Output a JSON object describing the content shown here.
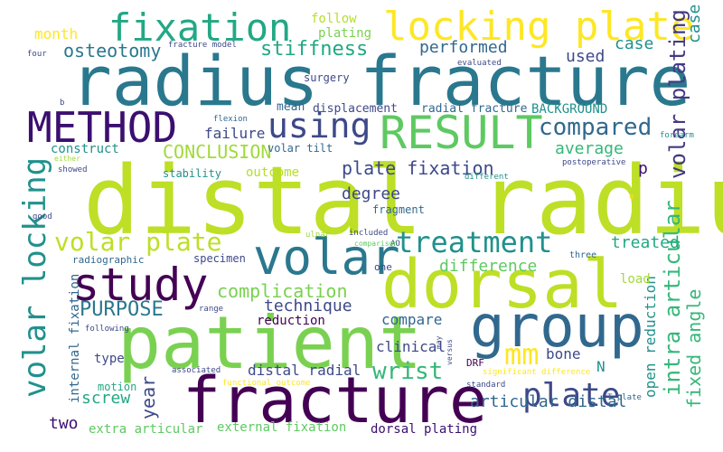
{
  "words": {
    "radius_fracture": {
      "text": "radius fracture",
      "color": "#2a788e"
    },
    "distal_radius": {
      "text": "distal radius",
      "color": "#bddf26"
    },
    "dorsal": {
      "text": "dorsal",
      "color": "#bddf26"
    },
    "patient": {
      "text": "patient",
      "color": "#7ad151"
    },
    "fracture": {
      "text": "fracture",
      "color": "#440154"
    },
    "group": {
      "text": "group",
      "color": "#31688e"
    },
    "volar": {
      "text": "volar",
      "color": "#2a788e"
    },
    "result": {
      "text": "RESULT",
      "color": "#5ec962"
    },
    "method": {
      "text": "METHOD",
      "color": "#3b0f70"
    },
    "locking_plate": {
      "text": "locking plate",
      "color": "#fde725"
    },
    "fixation": {
      "text": "fixation",
      "color": "#22a884"
    },
    "study": {
      "text": "study",
      "color": "#440154"
    },
    "volar_plate": {
      "text": "volar plate",
      "color": "#bddf26"
    },
    "volar_locking": {
      "text": "volar locking",
      "color": "#21918c"
    },
    "treatment": {
      "text": "treatment",
      "color": "#21918c"
    },
    "plate": {
      "text": "plate",
      "color": "#3e4989"
    },
    "using": {
      "text": "using",
      "color": "#3e4989"
    },
    "mm": {
      "text": "mm",
      "color": "#fde725"
    },
    "wrist": {
      "text": "wrist",
      "color": "#35b779"
    },
    "volar_plating": {
      "text": "volar plating",
      "color": "#443983"
    },
    "intra_articular": {
      "text": "intra articular",
      "color": "#35b779"
    },
    "fixed_angle": {
      "text": "fixed angle",
      "color": "#35b779"
    },
    "stiffness": {
      "text": "stiffness",
      "color": "#22a884"
    },
    "osteotomy": {
      "text": "osteotomy",
      "color": "#2a788e"
    },
    "plate_fixation": {
      "text": "plate fixation",
      "color": "#3e4989"
    },
    "compared": {
      "text": "compared",
      "color": "#31688e"
    },
    "complication": {
      "text": "complication",
      "color": "#7ad151"
    },
    "purpose": {
      "text": "PURPOSE",
      "color": "#2a788e"
    },
    "conclusion": {
      "text": "CONCLUSION",
      "color": "#a0da39"
    },
    "performed": {
      "text": "performed",
      "color": "#31688e"
    },
    "used": {
      "text": "used",
      "color": "#3e4989"
    },
    "case": {
      "text": "case",
      "color": "#21918c"
    },
    "month": {
      "text": "month",
      "color": "#fde725"
    },
    "follow": {
      "text": "follow",
      "color": "#b5de2b"
    },
    "plating": {
      "text": "plating",
      "color": "#7ad151"
    },
    "average": {
      "text": "average",
      "color": "#35b779"
    },
    "degree": {
      "text": "degree",
      "color": "#3e4989"
    },
    "difference": {
      "text": "difference",
      "color": "#5ec962"
    },
    "treated": {
      "text": "treated",
      "color": "#22a884"
    },
    "technique": {
      "text": "technique",
      "color": "#3e4989"
    },
    "compare": {
      "text": "compare",
      "color": "#31688e"
    },
    "clinical": {
      "text": "clinical",
      "color": "#3e4989"
    },
    "reduction": {
      "text": "reduction",
      "color": "#440154"
    },
    "open_reduction": {
      "text": "open reduction",
      "color": "#21918c"
    },
    "bone": {
      "text": "bone",
      "color": "#3e4989"
    },
    "type": {
      "text": "type",
      "color": "#3e4989"
    },
    "screw": {
      "text": "screw",
      "color": "#22a884"
    },
    "year": {
      "text": "year",
      "color": "#3e4989"
    },
    "two": {
      "text": "two",
      "color": "#3b0f70"
    },
    "distal_radial": {
      "text": "distal radial",
      "color": "#3e4989"
    },
    "articular_distal": {
      "text": "articular distal",
      "color": "#31688e"
    },
    "extra_articular": {
      "text": "extra articular",
      "color": "#5ec962"
    },
    "external_fixation": {
      "text": "external fixation",
      "color": "#5ec962"
    },
    "dorsal_plating": {
      "text": "dorsal plating",
      "color": "#3b0f70"
    },
    "failure": {
      "text": "failure",
      "color": "#3e4989"
    },
    "construct": {
      "text": "construct",
      "color": "#21918c"
    },
    "outcome": {
      "text": "outcome",
      "color": "#b5de2b"
    },
    "stability": {
      "text": "stability",
      "color": "#21918c"
    },
    "mean": {
      "text": "mean",
      "color": "#31688e"
    },
    "displacement": {
      "text": "displacement",
      "color": "#3e4989"
    },
    "radial_fracture": {
      "text": "radial fracture",
      "color": "#31688e"
    },
    "background": {
      "text": "BACKGROUND",
      "color": "#21918c"
    },
    "surgery": {
      "text": "surgery",
      "color": "#3e4989"
    },
    "volar_tilt": {
      "text": "volar tilt",
      "color": "#31688e"
    },
    "fragment": {
      "text": "fragment",
      "color": "#31688e"
    },
    "specimen": {
      "text": "specimen",
      "color": "#3e4989"
    },
    "load": {
      "text": "load",
      "color": "#a0da39"
    },
    "radiographic": {
      "text": "radiographic",
      "color": "#31688e"
    },
    "internal_fixation": {
      "text": "internal fixation",
      "color": "#31688e"
    },
    "motion": {
      "text": "motion",
      "color": "#22a884"
    },
    "n": {
      "text": "N",
      "color": "#21918c"
    },
    "p": {
      "text": "p",
      "color": "#3b0f70"
    },
    "drf": {
      "text": "DRF",
      "color": "#440154"
    },
    "one": {
      "text": "one",
      "color": "#3e4989"
    },
    "three": {
      "text": "three",
      "color": "#31688e"
    },
    "ao": {
      "text": "AO",
      "color": "#3e4989"
    },
    "ulnar": {
      "text": "ulnar",
      "color": "#a0da39"
    },
    "included": {
      "text": "included",
      "color": "#3e4989"
    },
    "comparison": {
      "text": "comparison",
      "color": "#5ec962"
    },
    "may": {
      "text": "may",
      "color": "#3e4989"
    },
    "versus": {
      "text": "versus",
      "color": "#3e4989"
    },
    "flexion": {
      "text": "flexion",
      "color": "#31688e"
    },
    "forearm": {
      "text": "forearm",
      "color": "#21918c"
    },
    "postoperative": {
      "text": "postoperative",
      "color": "#3e4989"
    },
    "different": {
      "text": "different",
      "color": "#21918c"
    },
    "showed": {
      "text": "showed",
      "color": "#3e4989"
    },
    "either": {
      "text": "either",
      "color": "#a0da39"
    },
    "b": {
      "text": "b",
      "color": "#3e4989"
    },
    "four": {
      "text": "four",
      "color": "#3e4989"
    },
    "fracture_model": {
      "text": "fracture model",
      "color": "#3e4989"
    },
    "evaluated": {
      "text": "evaluated",
      "color": "#3e4989"
    },
    "good": {
      "text": "good",
      "color": "#3e4989"
    },
    "range": {
      "text": "range",
      "color": "#3e4989"
    },
    "following": {
      "text": "following",
      "color": "#3e4989"
    },
    "associated": {
      "text": "associated",
      "color": "#3e4989"
    },
    "functional_outcome": {
      "text": "functional outcome",
      "color": "#fde725"
    },
    "significant_difference": {
      "text": "significant difference",
      "color": "#fde725"
    },
    "standard": {
      "text": "standard",
      "color": "#3e4989"
    },
    "t_plate": {
      "text": "T plate",
      "color": "#31688e"
    },
    "e_mark": {
      "text": "e",
      "color": "#fde725"
    }
  }
}
